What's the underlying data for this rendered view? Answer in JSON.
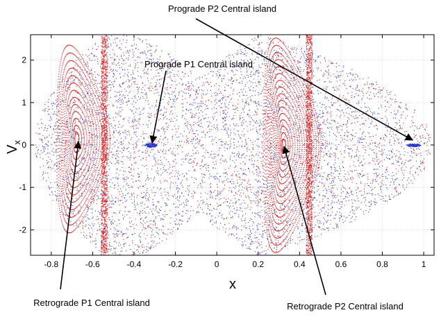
{
  "chart_data": {
    "type": "scatter",
    "title": "",
    "xlabel": "x",
    "ylabel_main": "V",
    "ylabel_sub": "x",
    "xlim": [
      -0.9,
      1.05
    ],
    "ylim": [
      -2.6,
      2.6
    ],
    "x_ticks": [
      -0.8,
      -0.6,
      -0.4,
      -0.2,
      0,
      0.2,
      0.4,
      0.6,
      0.8,
      1
    ],
    "x_tick_labels": [
      "-0.8",
      "-0.6",
      "-0.4",
      "-0.2",
      "0",
      "0.2",
      "0.4",
      "0.6",
      "0.8",
      "1"
    ],
    "y_ticks": [
      -2,
      -1,
      0,
      1,
      2
    ],
    "y_tick_labels": [
      "-2",
      "-1",
      "0",
      "1",
      "2"
    ],
    "grid": true,
    "series": [
      {
        "name": "prograde orbits",
        "color": "#2233cc",
        "description": "chaotic sea of scattered points"
      },
      {
        "name": "retrograde orbits",
        "color": "#dd2020",
        "description": "nested invariant curves around retrograde islands"
      }
    ],
    "islands": {
      "retrograde_p1_center": [
        -0.68,
        0.15
      ],
      "retrograde_p2_center": [
        0.32,
        0.0
      ],
      "prograde_p1_center": [
        -0.32,
        0.0
      ],
      "prograde_p2_center": [
        0.95,
        0.0
      ]
    },
    "annotations": [
      {
        "name": "prograde-p2",
        "text": "Prograde P2 Central island",
        "target": [
          0.95,
          0.0
        ]
      },
      {
        "name": "prograde-p1",
        "text": "Prograde P1 Central island",
        "target": [
          -0.32,
          0.0
        ]
      },
      {
        "name": "retrograde-p1",
        "text": "Retrograde P1 Central island",
        "target": [
          -0.68,
          0.0
        ]
      },
      {
        "name": "retrograde-p2",
        "text": "Retrograde P2 Central island",
        "target": [
          0.33,
          -0.15
        ]
      }
    ]
  }
}
